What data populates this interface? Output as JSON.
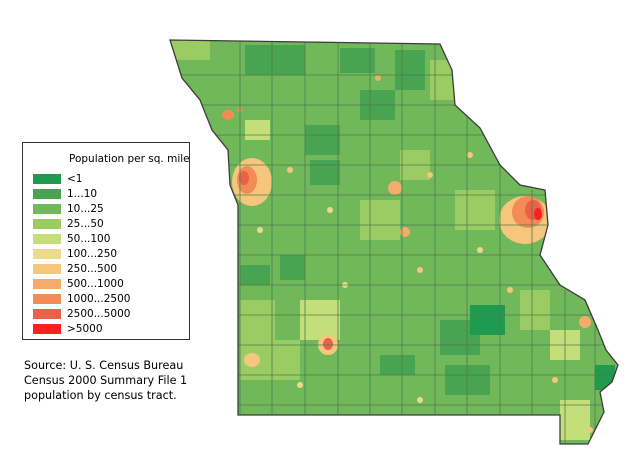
{
  "legend": {
    "title": "Population per sq. mile",
    "items": [
      {
        "label": "<1",
        "color": "#1f9a4e"
      },
      {
        "label": "1...10",
        "color": "#49a452"
      },
      {
        "label": "10...25",
        "color": "#71b85a"
      },
      {
        "label": "25...50",
        "color": "#9bcc64"
      },
      {
        "label": "50...100",
        "color": "#c4df7a"
      },
      {
        "label": "100...250",
        "color": "#ecdb8c"
      },
      {
        "label": "250...500",
        "color": "#f5c67c"
      },
      {
        "label": "500...1000",
        "color": "#f6ab6a"
      },
      {
        "label": "1000...2500",
        "color": "#f28b56"
      },
      {
        "label": "2500...5000",
        "color": "#ea6147"
      },
      {
        "label": ">5000",
        "color": "#ff1f1f"
      }
    ]
  },
  "source": {
    "line1": "Source: U. S. Census Bureau",
    "line2": "Census 2000 Summary File 1",
    "line3": "population by census tract."
  },
  "map": {
    "region": "Missouri",
    "base_color": "#71b85a",
    "county_line_color": "#4f7b4f",
    "state_outline_color": "#3c3c3c"
  }
}
